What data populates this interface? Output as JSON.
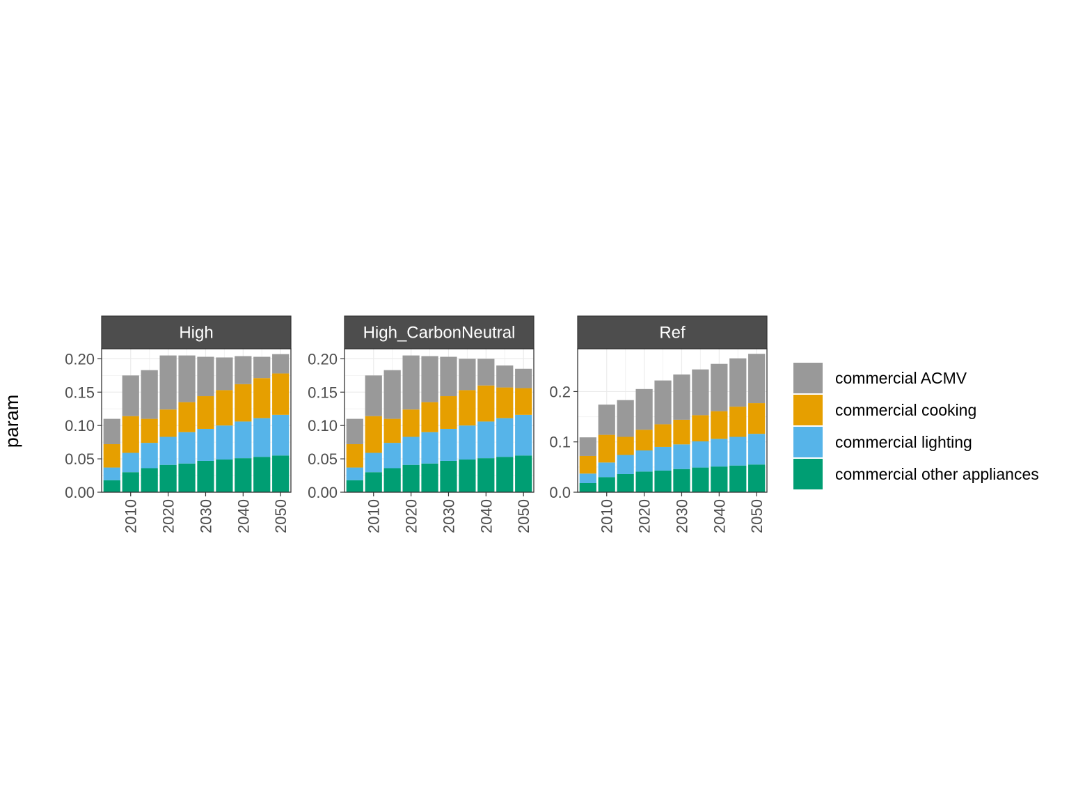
{
  "chart_data": {
    "type": "bar",
    "stacked": true,
    "ylabel": "param",
    "xlabel": "",
    "facet_scales": "free_y",
    "grid": true,
    "legend_position": "right",
    "x": [
      2005,
      2010,
      2015,
      2020,
      2025,
      2030,
      2035,
      2040,
      2045,
      2050
    ],
    "x_ticks": [
      2010,
      2020,
      2030,
      2040,
      2050
    ],
    "legend": [
      {
        "name": "commercial ACMV",
        "color": "#999999"
      },
      {
        "name": "commercial cooking",
        "color": "#E69F00"
      },
      {
        "name": "commercial lighting",
        "color": "#56B4E9"
      },
      {
        "name": "commercial other appliances",
        "color": "#009E73"
      }
    ],
    "panels": [
      {
        "title": "High",
        "ylim": [
          0,
          0.215
        ],
        "y_ticks": [
          0.0,
          0.05,
          0.1,
          0.15,
          0.2
        ],
        "y_tick_labels": [
          "0.00",
          "0.05",
          "0.10",
          "0.15",
          "0.20"
        ],
        "series": [
          {
            "name": "commercial other appliances",
            "values": [
              0.018,
              0.03,
              0.036,
              0.041,
              0.043,
              0.047,
              0.049,
              0.051,
              0.053,
              0.055
            ]
          },
          {
            "name": "commercial lighting",
            "values": [
              0.019,
              0.029,
              0.038,
              0.042,
              0.047,
              0.048,
              0.051,
              0.055,
              0.058,
              0.061
            ]
          },
          {
            "name": "commercial cooking",
            "values": [
              0.035,
              0.055,
              0.036,
              0.041,
              0.045,
              0.049,
              0.053,
              0.056,
              0.06,
              0.062
            ]
          },
          {
            "name": "commercial ACMV",
            "values": [
              0.038,
              0.061,
              0.073,
              0.081,
              0.07,
              0.059,
              0.049,
              0.042,
              0.032,
              0.029
            ]
          }
        ]
      },
      {
        "title": "High_CarbonNeutral",
        "ylim": [
          0,
          0.215
        ],
        "y_ticks": [
          0.0,
          0.05,
          0.1,
          0.15,
          0.2
        ],
        "y_tick_labels": [
          "0.00",
          "0.05",
          "0.10",
          "0.15",
          "0.20"
        ],
        "series": [
          {
            "name": "commercial other appliances",
            "values": [
              0.018,
              0.03,
              0.036,
              0.041,
              0.043,
              0.047,
              0.049,
              0.051,
              0.053,
              0.055
            ]
          },
          {
            "name": "commercial lighting",
            "values": [
              0.019,
              0.029,
              0.038,
              0.042,
              0.047,
              0.048,
              0.051,
              0.055,
              0.058,
              0.061
            ]
          },
          {
            "name": "commercial cooking",
            "values": [
              0.035,
              0.055,
              0.036,
              0.041,
              0.045,
              0.049,
              0.053,
              0.054,
              0.046,
              0.04
            ]
          },
          {
            "name": "commercial ACMV",
            "values": [
              0.038,
              0.061,
              0.073,
              0.081,
              0.069,
              0.059,
              0.047,
              0.04,
              0.033,
              0.029
            ]
          }
        ]
      },
      {
        "title": "Ref",
        "ylim": [
          0,
          0.285
        ],
        "y_ticks": [
          0.0,
          0.1,
          0.2
        ],
        "y_tick_labels": [
          "0.0",
          "0.1",
          "0.2"
        ],
        "series": [
          {
            "name": "commercial other appliances",
            "values": [
              0.018,
              0.03,
              0.036,
              0.041,
              0.043,
              0.046,
              0.049,
              0.051,
              0.053,
              0.055
            ]
          },
          {
            "name": "commercial lighting",
            "values": [
              0.019,
              0.029,
              0.038,
              0.042,
              0.047,
              0.049,
              0.052,
              0.055,
              0.057,
              0.061
            ]
          },
          {
            "name": "commercial cooking",
            "values": [
              0.035,
              0.055,
              0.036,
              0.041,
              0.045,
              0.049,
              0.052,
              0.055,
              0.06,
              0.061
            ]
          },
          {
            "name": "commercial ACMV",
            "values": [
              0.037,
              0.06,
              0.073,
              0.081,
              0.087,
              0.09,
              0.091,
              0.094,
              0.096,
              0.098
            ]
          }
        ]
      }
    ]
  }
}
